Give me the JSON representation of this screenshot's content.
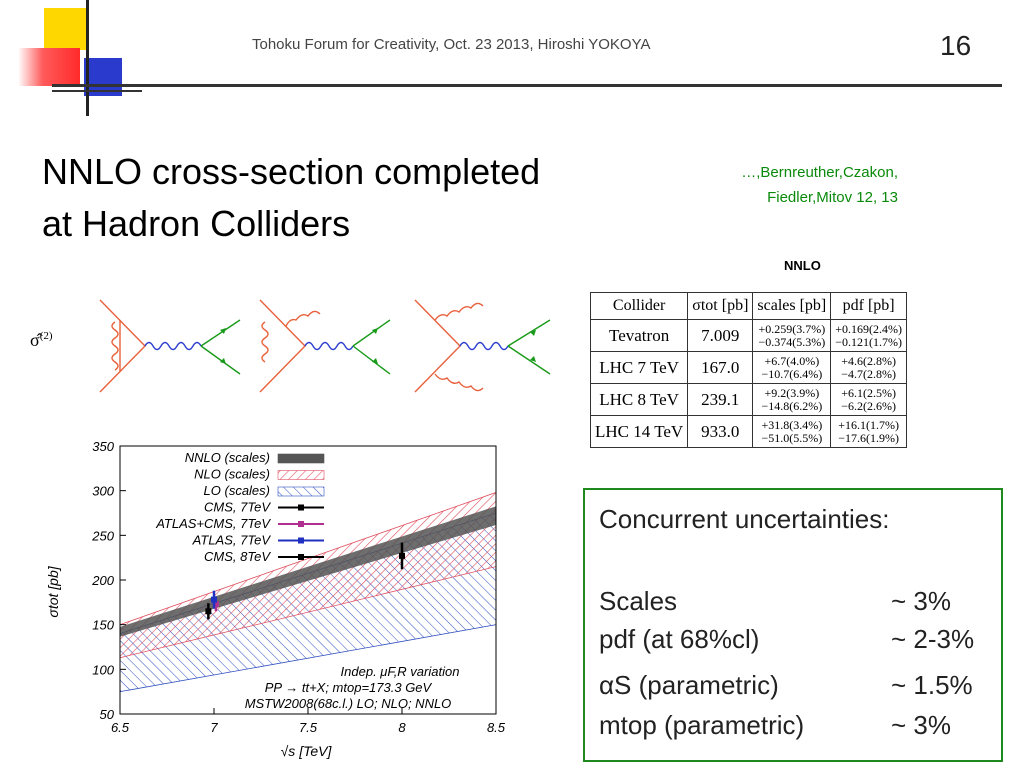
{
  "header": {
    "event": "Tohoku Forum for Creativity, Oct. 23 2013, Hiroshi YOKOYA",
    "page_number": "16",
    "colors": {
      "yellow": "#ffd700",
      "red": "#ff2a2a",
      "blue": "#2a3acd"
    }
  },
  "title": {
    "line1": "NNLO cross-section completed",
    "line2": "at Hadron Colliders"
  },
  "citation": {
    "line1": "…,Bernreuther,Czakon,",
    "line2": "Fiedler,Mitov 12, 13"
  },
  "diagrams": {
    "label": "σ̂",
    "superscript": "(2)"
  },
  "table": {
    "caption": "NNLO",
    "headers": [
      "Collider",
      "σtot [pb]",
      "scales [pb]",
      "pdf [pb]"
    ],
    "rows": [
      {
        "collider": "Tevatron",
        "sigma": "7.009",
        "scales_up": "+0.259(3.7%)",
        "scales_down": "−0.374(5.3%)",
        "pdf_up": "+0.169(2.4%)",
        "pdf_down": "−0.121(1.7%)"
      },
      {
        "collider": "LHC 7 TeV",
        "sigma": "167.0",
        "scales_up": "+6.7(4.0%)",
        "scales_down": "−10.7(6.4%)",
        "pdf_up": "+4.6(2.8%)",
        "pdf_down": "−4.7(2.8%)"
      },
      {
        "collider": "LHC 8 TeV",
        "sigma": "239.1",
        "scales_up": "+9.2(3.9%)",
        "scales_down": "−14.8(6.2%)",
        "pdf_up": "+6.1(2.5%)",
        "pdf_down": "−6.2(2.6%)"
      },
      {
        "collider": "LHC 14 TeV",
        "sigma": "933.0",
        "scales_up": "+31.8(3.4%)",
        "scales_down": "−51.0(5.5%)",
        "pdf_up": "+16.1(1.7%)",
        "pdf_down": "−17.6(1.9%)"
      }
    ]
  },
  "chart_data": {
    "type": "area",
    "xlabel": "√s [TeV]",
    "ylabel": "σtot [pb]",
    "xlim": [
      6.5,
      8.5
    ],
    "ylim": [
      50,
      350
    ],
    "xticks": [
      "6.5",
      "7",
      "7.5",
      "8",
      "8.5"
    ],
    "yticks": [
      "50",
      "100",
      "150",
      "200",
      "250",
      "300",
      "350"
    ],
    "legend_position": "top-left",
    "series": [
      {
        "name": "NNLO (scales)",
        "color": "#555555",
        "x": [
          6.5,
          8.5
        ],
        "low": [
          137,
          262
        ],
        "high": [
          147,
          282
        ]
      },
      {
        "name": "NLO (scales)",
        "color": "#e05060",
        "x": [
          6.5,
          8.5
        ],
        "low": [
          113,
          215
        ],
        "high": [
          150,
          298
        ]
      },
      {
        "name": "LO (scales)",
        "color": "#3050c0",
        "x": [
          6.5,
          8.5
        ],
        "low": [
          75,
          150
        ],
        "high": [
          140,
          275
        ]
      }
    ],
    "measurements": [
      {
        "name": "CMS, 7TeV",
        "color": "#000000",
        "x": 6.97,
        "y": 165,
        "err": 9
      },
      {
        "name": "ATLAS+CMS, 7TeV",
        "color": "#b03090",
        "x": 7.01,
        "y": 173,
        "err": 8
      },
      {
        "name": "ATLAS, 7TeV",
        "color": "#2030c0",
        "x": 7.0,
        "y": 178,
        "err": 10
      },
      {
        "name": "CMS, 8TeV",
        "color": "#000000",
        "x": 8.0,
        "y": 227,
        "err": 15
      }
    ],
    "annotations": [
      "Indep. μF,R variation",
      "PP → tt+X; mtop=173.3 GeV",
      "MSTW2008(68c.l.) LO; NLO; NNLO"
    ]
  },
  "box": {
    "heading": "Concurrent uncertainties:",
    "items": [
      {
        "label": "Scales",
        "value": "~ 3%"
      },
      {
        "label": "pdf (at 68%cl)",
        "value": "~ 2-3%"
      },
      {
        "label": "αS (parametric)",
        "value": "~ 1.5%"
      },
      {
        "label": "mtop (parametric)",
        "value": "~ 3%"
      }
    ]
  }
}
